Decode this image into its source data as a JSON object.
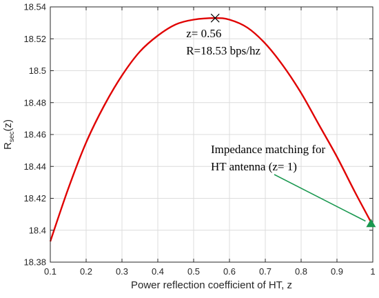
{
  "chart_data": {
    "type": "line",
    "title": "",
    "xlabel": "Power reflection coefficient of HT, z",
    "ylabel_main": "R",
    "ylabel_sub": "sec",
    "ylabel_tail": "(z)",
    "xlim": [
      0.1,
      1.0
    ],
    "ylim": [
      18.38,
      18.54
    ],
    "xticks": [
      0.1,
      0.2,
      0.3,
      0.4,
      0.5,
      0.6,
      0.7,
      0.8,
      0.9,
      1.0
    ],
    "xtick_labels": [
      "0.1",
      "0.2",
      "0.3",
      "0.4",
      "0.5",
      "0.6",
      "0.7",
      "0.8",
      "0.9",
      "1"
    ],
    "yticks": [
      18.38,
      18.4,
      18.42,
      18.44,
      18.46,
      18.48,
      18.5,
      18.52,
      18.54
    ],
    "ytick_labels": [
      "18.38",
      "18.4",
      "18.42",
      "18.44",
      "18.46",
      "18.48",
      "18.5",
      "18.52",
      "18.54"
    ],
    "grid": true,
    "series": [
      {
        "color": "#e00000",
        "x": [
          0.1,
          0.15,
          0.2,
          0.25,
          0.3,
          0.35,
          0.4,
          0.45,
          0.5,
          0.56,
          0.6,
          0.65,
          0.7,
          0.75,
          0.8,
          0.85,
          0.9,
          0.95,
          1.0
        ],
        "y": [
          18.393,
          18.426,
          18.455,
          18.478,
          18.497,
          18.512,
          18.522,
          18.529,
          18.532,
          18.533,
          18.532,
          18.527,
          18.517,
          18.503,
          18.486,
          18.466,
          18.446,
          18.424,
          18.403
        ]
      }
    ],
    "markers": [
      {
        "name": "max-marker",
        "symbol": "x",
        "x": 0.56,
        "y": 18.533,
        "color": "#000000"
      },
      {
        "name": "impedance-marker",
        "symbol": "triangle",
        "x": 0.995,
        "y": 18.404,
        "color": "#1a9850"
      }
    ],
    "annotations": {
      "max_z": "z= 0.56",
      "max_r": "R=18.53 bps/hz",
      "impedance_line1": "Impedance matching for",
      "impedance_line2": "HT antenna (z= 1)"
    },
    "arrow_color": "#1a9850"
  }
}
